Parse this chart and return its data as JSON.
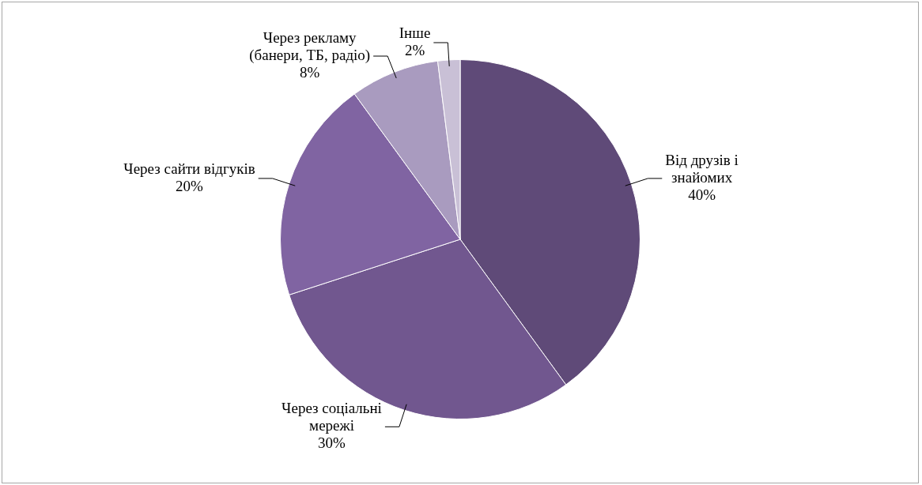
{
  "chart_data": {
    "type": "pie",
    "categories": [
      "Від друзів і знайомих",
      "Через соціальні мережі",
      "Через сайти відгуків",
      "Через рекламу (банери, ТБ, радіо)",
      "Інше"
    ],
    "values": [
      40,
      30,
      20,
      8,
      2
    ],
    "value_labels": [
      "40%",
      "30%",
      "20%",
      "8%",
      "2%"
    ],
    "colors": [
      "#5f4a78",
      "#71578f",
      "#8064a2",
      "#a99bbf",
      "#c9c0d6"
    ],
    "legend": false
  }
}
